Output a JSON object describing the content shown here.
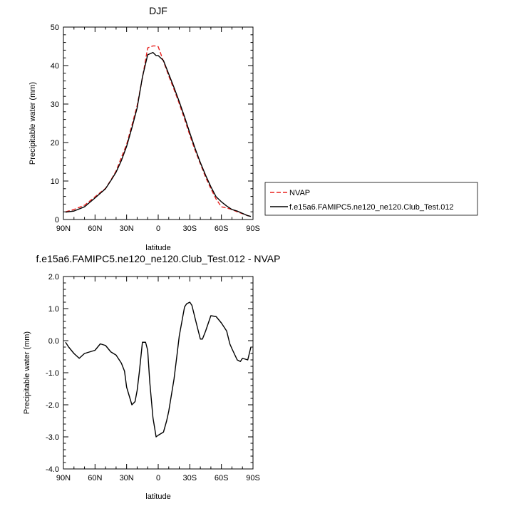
{
  "chart_data": [
    {
      "type": "line",
      "title": "DJF",
      "xlabel": "latitude",
      "ylabel": "Precipitable water (mm)",
      "xlim": [
        90,
        -90
      ],
      "ylim": [
        0,
        50
      ],
      "xticks": [
        90,
        60,
        30,
        0,
        -30,
        -60,
        -90
      ],
      "xtick_labels": [
        "90N",
        "60N",
        "30N",
        "0",
        "30S",
        "60S",
        "90S"
      ],
      "yticks": [
        0,
        10,
        20,
        30,
        40,
        50
      ],
      "ytick_labels": [
        "0",
        "10",
        "20",
        "30",
        "40",
        "50"
      ],
      "legend_position": "outside-right",
      "series": [
        {
          "name": "NVAP",
          "color": "#e8221f",
          "dash": "dashed",
          "x": [
            88,
            80,
            70,
            60,
            55,
            50,
            45,
            40,
            35,
            30,
            25,
            20,
            15,
            10,
            5,
            2,
            0,
            -5,
            -10,
            -15,
            -20,
            -25,
            -30,
            -35,
            -40,
            -45,
            -50,
            -55,
            -60,
            -65,
            -70,
            -75,
            -80,
            -85,
            -88
          ],
          "y": [
            2.0,
            2.6,
            3.7,
            5.9,
            7.0,
            8.1,
            10.2,
            12.6,
            16.1,
            19.5,
            24.5,
            29.6,
            36.8,
            44.6,
            45.1,
            45.1,
            44.9,
            41.1,
            37.3,
            33.8,
            30.1,
            26.1,
            21.9,
            18.0,
            14.5,
            11.0,
            8.0,
            5.3,
            3.3,
            3.0,
            2.6,
            2.0,
            1.5,
            1.0,
            0.8
          ]
        },
        {
          "name": "f.e15a6.FAMIPC5.ne120_ne120.Club_Test.012",
          "color": "#000000",
          "dash": "solid",
          "x": [
            88,
            80,
            70,
            60,
            55,
            50,
            45,
            40,
            35,
            30,
            25,
            20,
            15,
            10,
            5,
            2,
            0,
            -5,
            -10,
            -15,
            -20,
            -25,
            -30,
            -35,
            -40,
            -45,
            -50,
            -55,
            -60,
            -65,
            -70,
            -75,
            -80,
            -85,
            -88
          ],
          "y": [
            1.9,
            2.2,
            3.3,
            5.6,
            6.8,
            8.0,
            10.1,
            12.3,
            15.3,
            19.0,
            23.8,
            29.0,
            37.0,
            42.8,
            43.4,
            42.6,
            42.6,
            41.3,
            37.8,
            34.3,
            30.6,
            26.7,
            22.5,
            18.5,
            14.8,
            11.5,
            8.5,
            5.9,
            4.6,
            3.5,
            2.6,
            2.2,
            1.6,
            1.0,
            0.8
          ]
        }
      ]
    },
    {
      "type": "line",
      "title": "f.e15a6.FAMIPC5.ne120_ne120.Club_Test.012 - NVAP",
      "xlabel": "latitude",
      "ylabel": "Precipitable water (mm)",
      "xlim": [
        90,
        -90
      ],
      "ylim": [
        -4.0,
        2.0
      ],
      "xticks": [
        90,
        60,
        30,
        0,
        -30,
        -60,
        -90
      ],
      "xtick_labels": [
        "90N",
        "60N",
        "30N",
        "0",
        "30S",
        "60S",
        "90S"
      ],
      "yticks": [
        -4.0,
        -3.0,
        -2.0,
        -1.0,
        0.0,
        1.0,
        2.0
      ],
      "ytick_labels": [
        "-4.0",
        "-3.0",
        "-2.0",
        "-1.0",
        "0.0",
        "1.0",
        "2.0"
      ],
      "series": [
        {
          "color": "#000000",
          "dash": "solid",
          "x": [
            88,
            85,
            80,
            75,
            70,
            65,
            60,
            55,
            50,
            45,
            40,
            35,
            32,
            30,
            25,
            22,
            20,
            18,
            15,
            12,
            10,
            8,
            5,
            2,
            0,
            -5,
            -8,
            -10,
            -12,
            -15,
            -18,
            -20,
            -25,
            -27,
            -30,
            -32,
            -35,
            -40,
            -42,
            -45,
            -50,
            -55,
            -60,
            -65,
            -68,
            -70,
            -75,
            -78,
            -80,
            -85,
            -88
          ],
          "y": [
            -0.05,
            -0.2,
            -0.4,
            -0.55,
            -0.4,
            -0.35,
            -0.3,
            -0.1,
            -0.15,
            -0.35,
            -0.45,
            -0.7,
            -0.95,
            -1.45,
            -2.0,
            -1.9,
            -1.55,
            -1.0,
            -0.05,
            -0.05,
            -0.3,
            -1.3,
            -2.4,
            -3.0,
            -2.95,
            -2.85,
            -2.5,
            -2.2,
            -1.8,
            -1.2,
            -0.4,
            0.15,
            1.05,
            1.15,
            1.2,
            1.1,
            0.7,
            0.05,
            0.05,
            0.3,
            0.78,
            0.75,
            0.55,
            0.3,
            -0.1,
            -0.25,
            -0.6,
            -0.65,
            -0.55,
            -0.6,
            -0.2
          ]
        }
      ]
    }
  ]
}
